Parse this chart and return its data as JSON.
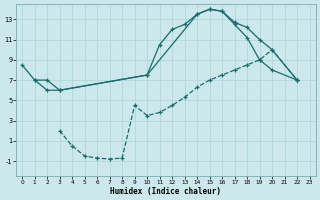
{
  "xlabel": "Humidex (Indice chaleur)",
  "bg_color": "#cce8ec",
  "grid_color": "#b0d8dc",
  "line_color": "#1a6b6b",
  "xlim": [
    -0.5,
    23.5
  ],
  "ylim": [
    -2.5,
    14.5
  ],
  "xticks": [
    0,
    1,
    2,
    3,
    4,
    5,
    6,
    7,
    8,
    9,
    10,
    11,
    12,
    13,
    14,
    15,
    16,
    17,
    18,
    19,
    20,
    21,
    22,
    23
  ],
  "yticks": [
    -1,
    1,
    3,
    5,
    7,
    9,
    11,
    13
  ],
  "line1_x": [
    0,
    1,
    2,
    3,
    10,
    11,
    12,
    13,
    14,
    15,
    16,
    17,
    18,
    19,
    20,
    22
  ],
  "line1_y": [
    8.5,
    7.0,
    7.0,
    6.0,
    7.5,
    10.5,
    12.0,
    12.5,
    13.5,
    14.0,
    13.8,
    12.7,
    12.2,
    11.0,
    10.0,
    7.0
  ],
  "line2_x": [
    1,
    2,
    3,
    10,
    14,
    15,
    16,
    17,
    18,
    19,
    20,
    22
  ],
  "line2_y": [
    7.0,
    6.0,
    6.0,
    7.5,
    13.5,
    14.0,
    13.8,
    12.5,
    11.2,
    9.0,
    8.0,
    7.0
  ],
  "line3_x": [
    3,
    4,
    5,
    6,
    7,
    8,
    9,
    10,
    11,
    12,
    13,
    14,
    15,
    16,
    17,
    18,
    19,
    20,
    22
  ],
  "line3_y": [
    2.0,
    0.5,
    -0.5,
    -0.7,
    -0.8,
    -0.7,
    4.5,
    3.5,
    3.8,
    4.5,
    5.3,
    6.3,
    7.0,
    7.5,
    8.0,
    8.5,
    9.0,
    10.0,
    7.0
  ]
}
